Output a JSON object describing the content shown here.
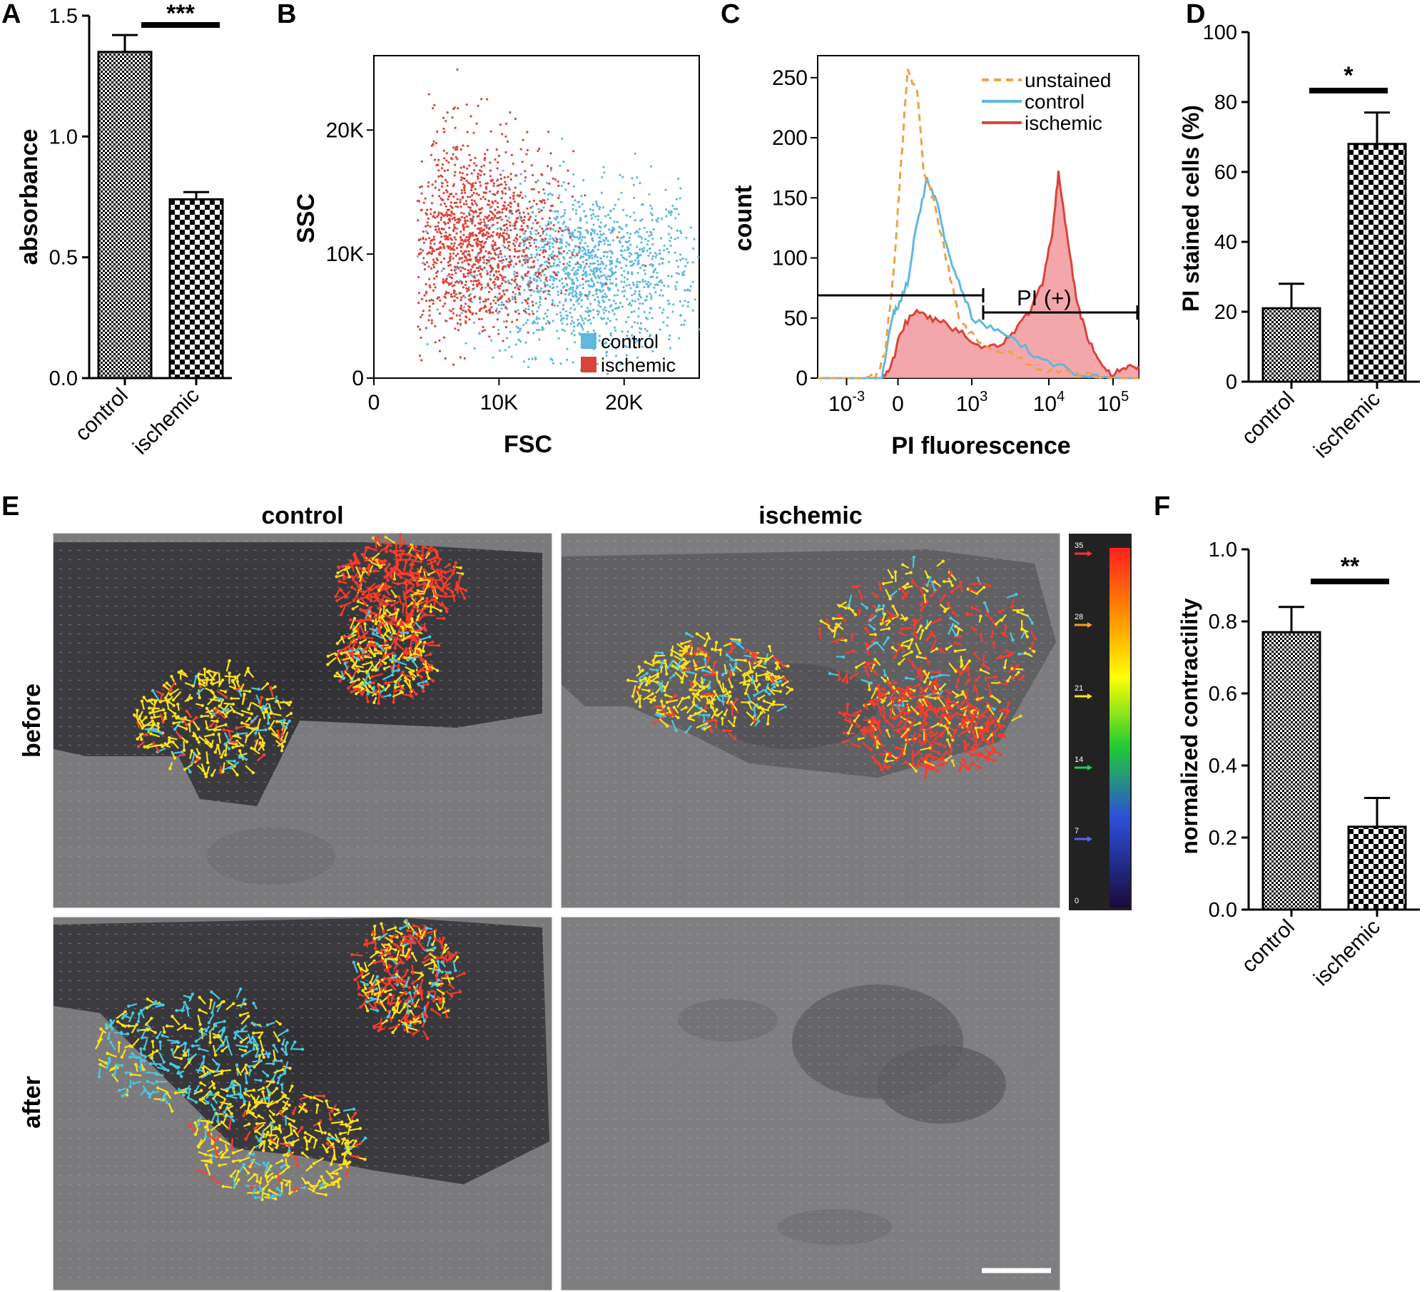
{
  "panel_letters": {
    "a": "A",
    "b": "B",
    "c": "C",
    "d": "D",
    "e": "E",
    "f": "F"
  },
  "colors": {
    "control_bar_pattern": "#000000",
    "flow_control": "#5fb8df",
    "flow_ischemic": "#d9443a",
    "unstained": "#f0a048",
    "scale_bar": "#ffffff"
  },
  "chart_data": [
    {
      "panel": "A",
      "type": "bar",
      "categories": [
        "control",
        "ischemic"
      ],
      "values": [
        1.35,
        0.74
      ],
      "errors": [
        0.07,
        0.03
      ],
      "patterns": [
        "fine-check",
        "coarse-check"
      ],
      "ylabel": "absorbance",
      "ylim": [
        0.0,
        1.5
      ],
      "yticks": [
        "0.0",
        "0.5",
        "1.0",
        "1.5"
      ],
      "significance": "***"
    },
    {
      "panel": "B",
      "type": "scatter",
      "xlabel": "FSC",
      "ylabel": "SSC",
      "xlim": [
        0,
        26000
      ],
      "ylim": [
        0,
        26000
      ],
      "xticks": [
        "0",
        "10K",
        "20K"
      ],
      "yticks": [
        "0",
        "10K",
        "20K"
      ],
      "legend_position": "bottom-right",
      "series": [
        {
          "name": "control",
          "color": "#5fb8df",
          "center": [
            17000,
            8500
          ],
          "spread": [
            4500,
            3300
          ]
        },
        {
          "name": "ischemic",
          "color": "#d9443a",
          "center": [
            8000,
            11000
          ],
          "spread": [
            3200,
            4200
          ]
        }
      ]
    },
    {
      "panel": "C",
      "type": "line",
      "xlabel": "PI fluorescence",
      "ylabel": "count",
      "ylim": [
        0,
        260
      ],
      "yticks": [
        "0",
        "50",
        "100",
        "150",
        "200",
        "250"
      ],
      "xtick_labels": [
        {
          "base": "10",
          "exp": "-3"
        },
        {
          "base": "0",
          "exp": ""
        },
        {
          "base": "10",
          "exp": "3"
        },
        {
          "base": "10",
          "exp": "4"
        },
        {
          "base": "10",
          "exp": "5"
        }
      ],
      "gate_label": "PI (+)",
      "legend_position": "top-right",
      "series": [
        {
          "name": "unstained",
          "style": "dashed",
          "color": "#f0a048",
          "x": [
            0.0,
            0.08,
            0.14,
            0.18,
            0.21,
            0.24,
            0.26,
            0.28,
            0.31,
            0.33,
            0.36,
            0.4,
            0.44,
            0.5,
            0.6,
            0.7,
            0.8,
            0.85,
            0.9,
            1.0
          ],
          "y": [
            0,
            0,
            0,
            2,
            20,
            100,
            180,
            255,
            240,
            170,
            150,
            100,
            50,
            30,
            20,
            8,
            4,
            2,
            0,
            0
          ]
        },
        {
          "name": "control",
          "style": "solid",
          "color": "#5fb8df",
          "x": [
            0.0,
            0.14,
            0.2,
            0.23,
            0.25,
            0.28,
            0.31,
            0.34,
            0.37,
            0.4,
            0.44,
            0.48,
            0.55,
            0.62,
            0.7,
            0.8,
            0.87,
            0.92,
            1.0
          ],
          "y": [
            0,
            0,
            0,
            50,
            60,
            80,
            130,
            165,
            150,
            110,
            80,
            50,
            40,
            30,
            15,
            5,
            2,
            0,
            0
          ]
        },
        {
          "name": "ischemic",
          "style": "filled",
          "color": "#d9443a",
          "x": [
            0.0,
            0.2,
            0.23,
            0.26,
            0.3,
            0.35,
            0.4,
            0.46,
            0.52,
            0.58,
            0.63,
            0.67,
            0.7,
            0.73,
            0.75,
            0.78,
            0.81,
            0.84,
            0.88,
            0.92,
            0.96,
            1.0
          ],
          "y": [
            0,
            0,
            10,
            40,
            55,
            50,
            45,
            35,
            25,
            30,
            45,
            60,
            80,
            120,
            170,
            110,
            60,
            35,
            12,
            3,
            8,
            10
          ]
        }
      ]
    },
    {
      "panel": "D",
      "type": "bar",
      "categories": [
        "control",
        "ischemic"
      ],
      "values": [
        21,
        68
      ],
      "errors": [
        7,
        9
      ],
      "patterns": [
        "fine-check",
        "coarse-check"
      ],
      "ylabel": "PI stained cells (%)",
      "ylim": [
        0,
        100
      ],
      "yticks": [
        "0",
        "20",
        "40",
        "60",
        "80",
        "100"
      ],
      "significance": "*"
    },
    {
      "panel": "F",
      "type": "bar",
      "categories": [
        "control",
        "ischemic"
      ],
      "values": [
        0.77,
        0.23
      ],
      "errors": [
        0.07,
        0.08
      ],
      "patterns": [
        "fine-check",
        "coarse-check"
      ],
      "ylabel": "normalized contractility",
      "ylim": [
        0.0,
        1.0
      ],
      "yticks": [
        "0.0",
        "0.2",
        "0.4",
        "0.6",
        "0.8",
        "1.0"
      ],
      "significance": "**"
    }
  ],
  "panel_e": {
    "col_headers": [
      "control",
      "ischemic"
    ],
    "row_headers": [
      "before",
      "after"
    ],
    "colorbar_ticks": [
      "35",
      "28",
      "21",
      "14",
      "7",
      "0"
    ],
    "tiles": [
      {
        "id": "control-before",
        "arrows": true
      },
      {
        "id": "ischemic-before",
        "arrows": true
      },
      {
        "id": "control-after",
        "arrows": true
      },
      {
        "id": "ischemic-after",
        "arrows": false
      }
    ]
  }
}
